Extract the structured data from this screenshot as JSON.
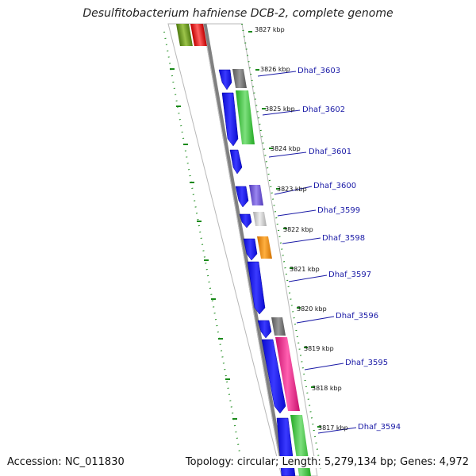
{
  "title": "Desulfitobacterium hafniense DCB-2, complete genome",
  "accession": "Accession: NC_011830",
  "summary": "Topology: circular; Length: 5,279,134 bp; Genes: 4,972",
  "colors": {
    "blue": "#1515e8",
    "green": "#36c936",
    "gray": "#707070",
    "purple": "#6a4fcf",
    "lightgray": "#c8c8c8",
    "orange": "#f08c00",
    "pink": "#e81c8c",
    "olive": "#6b9a1a",
    "red": "#e81010",
    "track": "#808080",
    "label": "#1a1aa6",
    "tick": "#1a8a1a"
  },
  "kbp_ticks": [
    {
      "label": "3827 kbp"
    },
    {
      "label": "3826 kbp"
    },
    {
      "label": "3825 kbp"
    },
    {
      "label": "3824 kbp"
    },
    {
      "label": "3823 kbp"
    },
    {
      "label": "3822 kbp"
    },
    {
      "label": "3821 kbp"
    },
    {
      "label": "3820 kbp"
    },
    {
      "label": "3819 kbp"
    },
    {
      "label": "3818 kbp"
    },
    {
      "label": "3817 kbp"
    }
  ],
  "gene_labels": [
    {
      "name": "Dhaf_3603"
    },
    {
      "name": "Dhaf_3602"
    },
    {
      "name": "Dhaf_3601"
    },
    {
      "name": "Dhaf_3600"
    },
    {
      "name": "Dhaf_3599"
    },
    {
      "name": "Dhaf_3598"
    },
    {
      "name": "Dhaf_3597"
    },
    {
      "name": "Dhaf_3596"
    },
    {
      "name": "Dhaf_3595"
    },
    {
      "name": "Dhaf_3594"
    }
  ]
}
